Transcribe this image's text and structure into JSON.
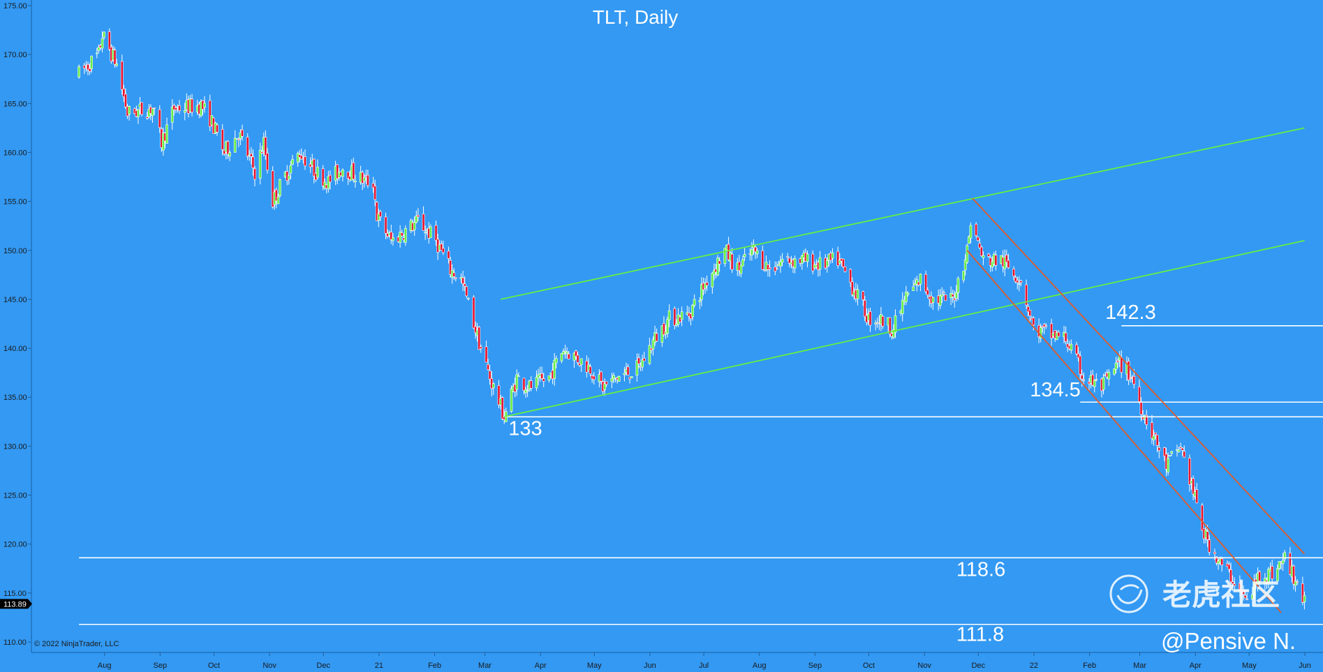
{
  "chart_data": {
    "type": "candlestick",
    "title": "TLT, Daily",
    "ylim": [
      110,
      175
    ],
    "y_ticks": [
      "175.00",
      "170.00",
      "165.00",
      "160.00",
      "155.00",
      "150.00",
      "145.00",
      "140.00",
      "135.00",
      "130.00",
      "125.00",
      "120.00",
      "115.00",
      "110.00"
    ],
    "x_tick_labels": [
      "Aug",
      "Sep",
      "Oct",
      "Nov",
      "Dec",
      "21",
      "Feb",
      "Mar",
      "Apr",
      "May",
      "Jun",
      "Jul",
      "Aug",
      "Sep",
      "Oct",
      "Nov",
      "Dec",
      "22",
      "Feb",
      "Mar",
      "Apr",
      "May",
      "Jun"
    ],
    "last_price": "113.89",
    "annotations": [
      {
        "text": "133",
        "x": "2021-03-18",
        "y": 133
      },
      {
        "text": "134.5",
        "x": "2022-01-05",
        "y": 134.5
      },
      {
        "text": "142.3",
        "x": "2022-02-16",
        "y": 142.3
      },
      {
        "text": "118.6",
        "x": "2021-11-25",
        "y": 118.6
      },
      {
        "text": "111.8",
        "x": "2021-11-25",
        "y": 111.8
      }
    ],
    "horizontal_levels": [
      {
        "y": 133,
        "from": "2021-03-18",
        "color": "#ffffff"
      },
      {
        "y": 134.5,
        "from": "2022-02-02",
        "color": "#ffffff"
      },
      {
        "y": 142.3,
        "from": "2022-02-25",
        "color": "#ffffff"
      },
      {
        "y": 118.6,
        "from": "2020-07-24",
        "color": "#ffffff"
      },
      {
        "y": 111.8,
        "from": "2020-07-24",
        "color": "#ffffff"
      }
    ],
    "trendlines": [
      {
        "color": "#66ee44",
        "from": {
          "x": "2021-03-16",
          "y": 145
        },
        "to": {
          "x": "2022-06-07",
          "y": 162.5
        }
      },
      {
        "color": "#66ee44",
        "from": {
          "x": "2021-03-18",
          "y": 133
        },
        "to": {
          "x": "2022-06-07",
          "y": 151
        }
      },
      {
        "color": "#e05a2a",
        "from": {
          "x": "2021-12-04",
          "y": 155.3
        },
        "to": {
          "x": "2022-06-07",
          "y": 119
        }
      },
      {
        "color": "#e05a2a",
        "from": {
          "x": "2021-12-01",
          "y": 150
        },
        "to": {
          "x": "2022-05-25",
          "y": 113
        }
      }
    ],
    "up_color": "#66ee44",
    "down_color": "#e8102a",
    "series": [
      {
        "name": "",
        "ohlc_control_points": [
          [
            "2020-07-24",
            168
          ],
          [
            "2020-08-04",
            170
          ],
          [
            "2020-08-06",
            172
          ],
          [
            "2020-08-14",
            169
          ],
          [
            "2020-08-20",
            164
          ],
          [
            "2020-09-03",
            164.5
          ],
          [
            "2020-09-08",
            161
          ],
          [
            "2020-09-15",
            164.5
          ],
          [
            "2020-09-30",
            164.8
          ],
          [
            "2020-10-05",
            163.5
          ],
          [
            "2020-10-13",
            160
          ],
          [
            "2020-10-21",
            162
          ],
          [
            "2020-10-30",
            158
          ],
          [
            "2020-11-04",
            161
          ],
          [
            "2020-11-09",
            155
          ],
          [
            "2020-11-17",
            158
          ],
          [
            "2020-11-24",
            160
          ],
          [
            "2020-12-03",
            158
          ],
          [
            "2020-12-10",
            157
          ],
          [
            "2020-12-18",
            158.5
          ],
          [
            "2020-12-31",
            157
          ],
          [
            "2021-01-04",
            157
          ],
          [
            "2021-01-06",
            153.5
          ],
          [
            "2021-01-14",
            151
          ],
          [
            "2021-01-22",
            152
          ],
          [
            "2021-01-29",
            153
          ],
          [
            "2021-02-08",
            151
          ],
          [
            "2021-02-16",
            148
          ],
          [
            "2021-02-22",
            147
          ],
          [
            "2021-02-26",
            144.5
          ],
          [
            "2021-03-05",
            140
          ],
          [
            "2021-03-10",
            137
          ],
          [
            "2021-03-18",
            133
          ],
          [
            "2021-03-25",
            137
          ],
          [
            "2021-04-01",
            136
          ],
          [
            "2021-04-12",
            137
          ],
          [
            "2021-04-20",
            140
          ],
          [
            "2021-05-05",
            138
          ],
          [
            "2021-05-12",
            136
          ],
          [
            "2021-05-20",
            137
          ],
          [
            "2021-06-01",
            138
          ],
          [
            "2021-06-10",
            141
          ],
          [
            "2021-06-18",
            143
          ],
          [
            "2021-06-29",
            143.5
          ],
          [
            "2021-07-09",
            147
          ],
          [
            "2021-07-19",
            150
          ],
          [
            "2021-07-26",
            148
          ],
          [
            "2021-08-04",
            150
          ],
          [
            "2021-08-13",
            148
          ],
          [
            "2021-08-20",
            149
          ],
          [
            "2021-09-01",
            149
          ],
          [
            "2021-09-10",
            148.5
          ],
          [
            "2021-09-20",
            149
          ],
          [
            "2021-09-29",
            146
          ],
          [
            "2021-10-07",
            143
          ],
          [
            "2021-10-13",
            143
          ],
          [
            "2021-10-21",
            142
          ],
          [
            "2021-10-27",
            145
          ],
          [
            "2021-11-05",
            147
          ],
          [
            "2021-11-12",
            145
          ],
          [
            "2021-11-23",
            145
          ],
          [
            "2021-12-01",
            150
          ],
          [
            "2021-12-03",
            153
          ],
          [
            "2021-12-10",
            149
          ],
          [
            "2021-12-20",
            149
          ],
          [
            "2021-12-31",
            147
          ],
          [
            "2022-01-07",
            142
          ],
          [
            "2022-01-14",
            141.5
          ],
          [
            "2022-01-25",
            141
          ],
          [
            "2022-02-04",
            137
          ],
          [
            "2022-02-14",
            136
          ],
          [
            "2022-02-24",
            138.5
          ],
          [
            "2022-03-03",
            137
          ],
          [
            "2022-03-08",
            134
          ],
          [
            "2022-03-15",
            131
          ],
          [
            "2022-03-22",
            128
          ],
          [
            "2022-03-30",
            130
          ],
          [
            "2022-04-05",
            126
          ],
          [
            "2022-04-12",
            121
          ],
          [
            "2022-04-21",
            118
          ],
          [
            "2022-04-28",
            116.5
          ],
          [
            "2022-05-06",
            114
          ],
          [
            "2022-05-13",
            117
          ],
          [
            "2022-05-20",
            117
          ],
          [
            "2022-05-27",
            118.5
          ],
          [
            "2022-06-03",
            116
          ],
          [
            "2022-06-07",
            113.89
          ]
        ]
      }
    ]
  },
  "copyright": "© 2022 NinjaTrader, LLC",
  "watermark": "老虎社区",
  "signature": "@Pensive N."
}
